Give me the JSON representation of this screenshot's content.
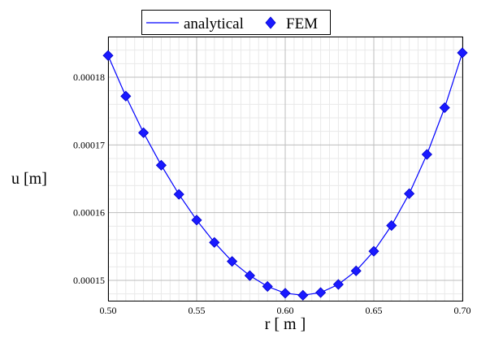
{
  "chart_data": {
    "type": "line",
    "xlabel": "r [ m ]",
    "ylabel": "u [m]",
    "xlim": [
      0.5,
      0.7
    ],
    "ylim": [
      0.000147,
      0.000186
    ],
    "x_ticks": [
      0.5,
      0.55,
      0.6,
      0.65,
      0.7
    ],
    "x_tick_labels": [
      "0.50",
      "0.55",
      "0.60",
      "0.65",
      "0.70"
    ],
    "y_ticks": [
      0.00015,
      0.00016,
      0.00017,
      0.00018
    ],
    "y_tick_labels": [
      "0.00015",
      "0.00016",
      "0.00017",
      "0.00018"
    ],
    "grid": true,
    "legend_placement": "top-center",
    "series": [
      {
        "name": "analytical",
        "kind": "line",
        "color": "#0000ff",
        "x": [
          0.5,
          0.51,
          0.52,
          0.53,
          0.54,
          0.55,
          0.56,
          0.57,
          0.58,
          0.59,
          0.6,
          0.61,
          0.62,
          0.63,
          0.64,
          0.65,
          0.66,
          0.67,
          0.68,
          0.69,
          0.7
        ],
        "y": [
          0.0001832,
          0.0001772,
          0.0001718,
          0.000167,
          0.0001627,
          0.0001589,
          0.0001556,
          0.0001528,
          0.0001507,
          0.0001491,
          0.0001481,
          0.0001478,
          0.0001482,
          0.0001494,
          0.0001514,
          0.0001543,
          0.0001581,
          0.0001628,
          0.0001686,
          0.0001755,
          0.0001836
        ]
      },
      {
        "name": "FEM",
        "kind": "diamond-markers",
        "color": "#1a1aff",
        "x": [
          0.5,
          0.51,
          0.52,
          0.53,
          0.54,
          0.55,
          0.56,
          0.57,
          0.58,
          0.59,
          0.6,
          0.61,
          0.62,
          0.63,
          0.64,
          0.65,
          0.66,
          0.67,
          0.68,
          0.69,
          0.7
        ],
        "y": [
          0.0001832,
          0.0001772,
          0.0001718,
          0.000167,
          0.0001627,
          0.0001589,
          0.0001556,
          0.0001528,
          0.0001507,
          0.0001491,
          0.0001481,
          0.0001478,
          0.0001482,
          0.0001494,
          0.0001514,
          0.0001543,
          0.0001581,
          0.0001628,
          0.0001686,
          0.0001755,
          0.0001836
        ]
      }
    ]
  }
}
